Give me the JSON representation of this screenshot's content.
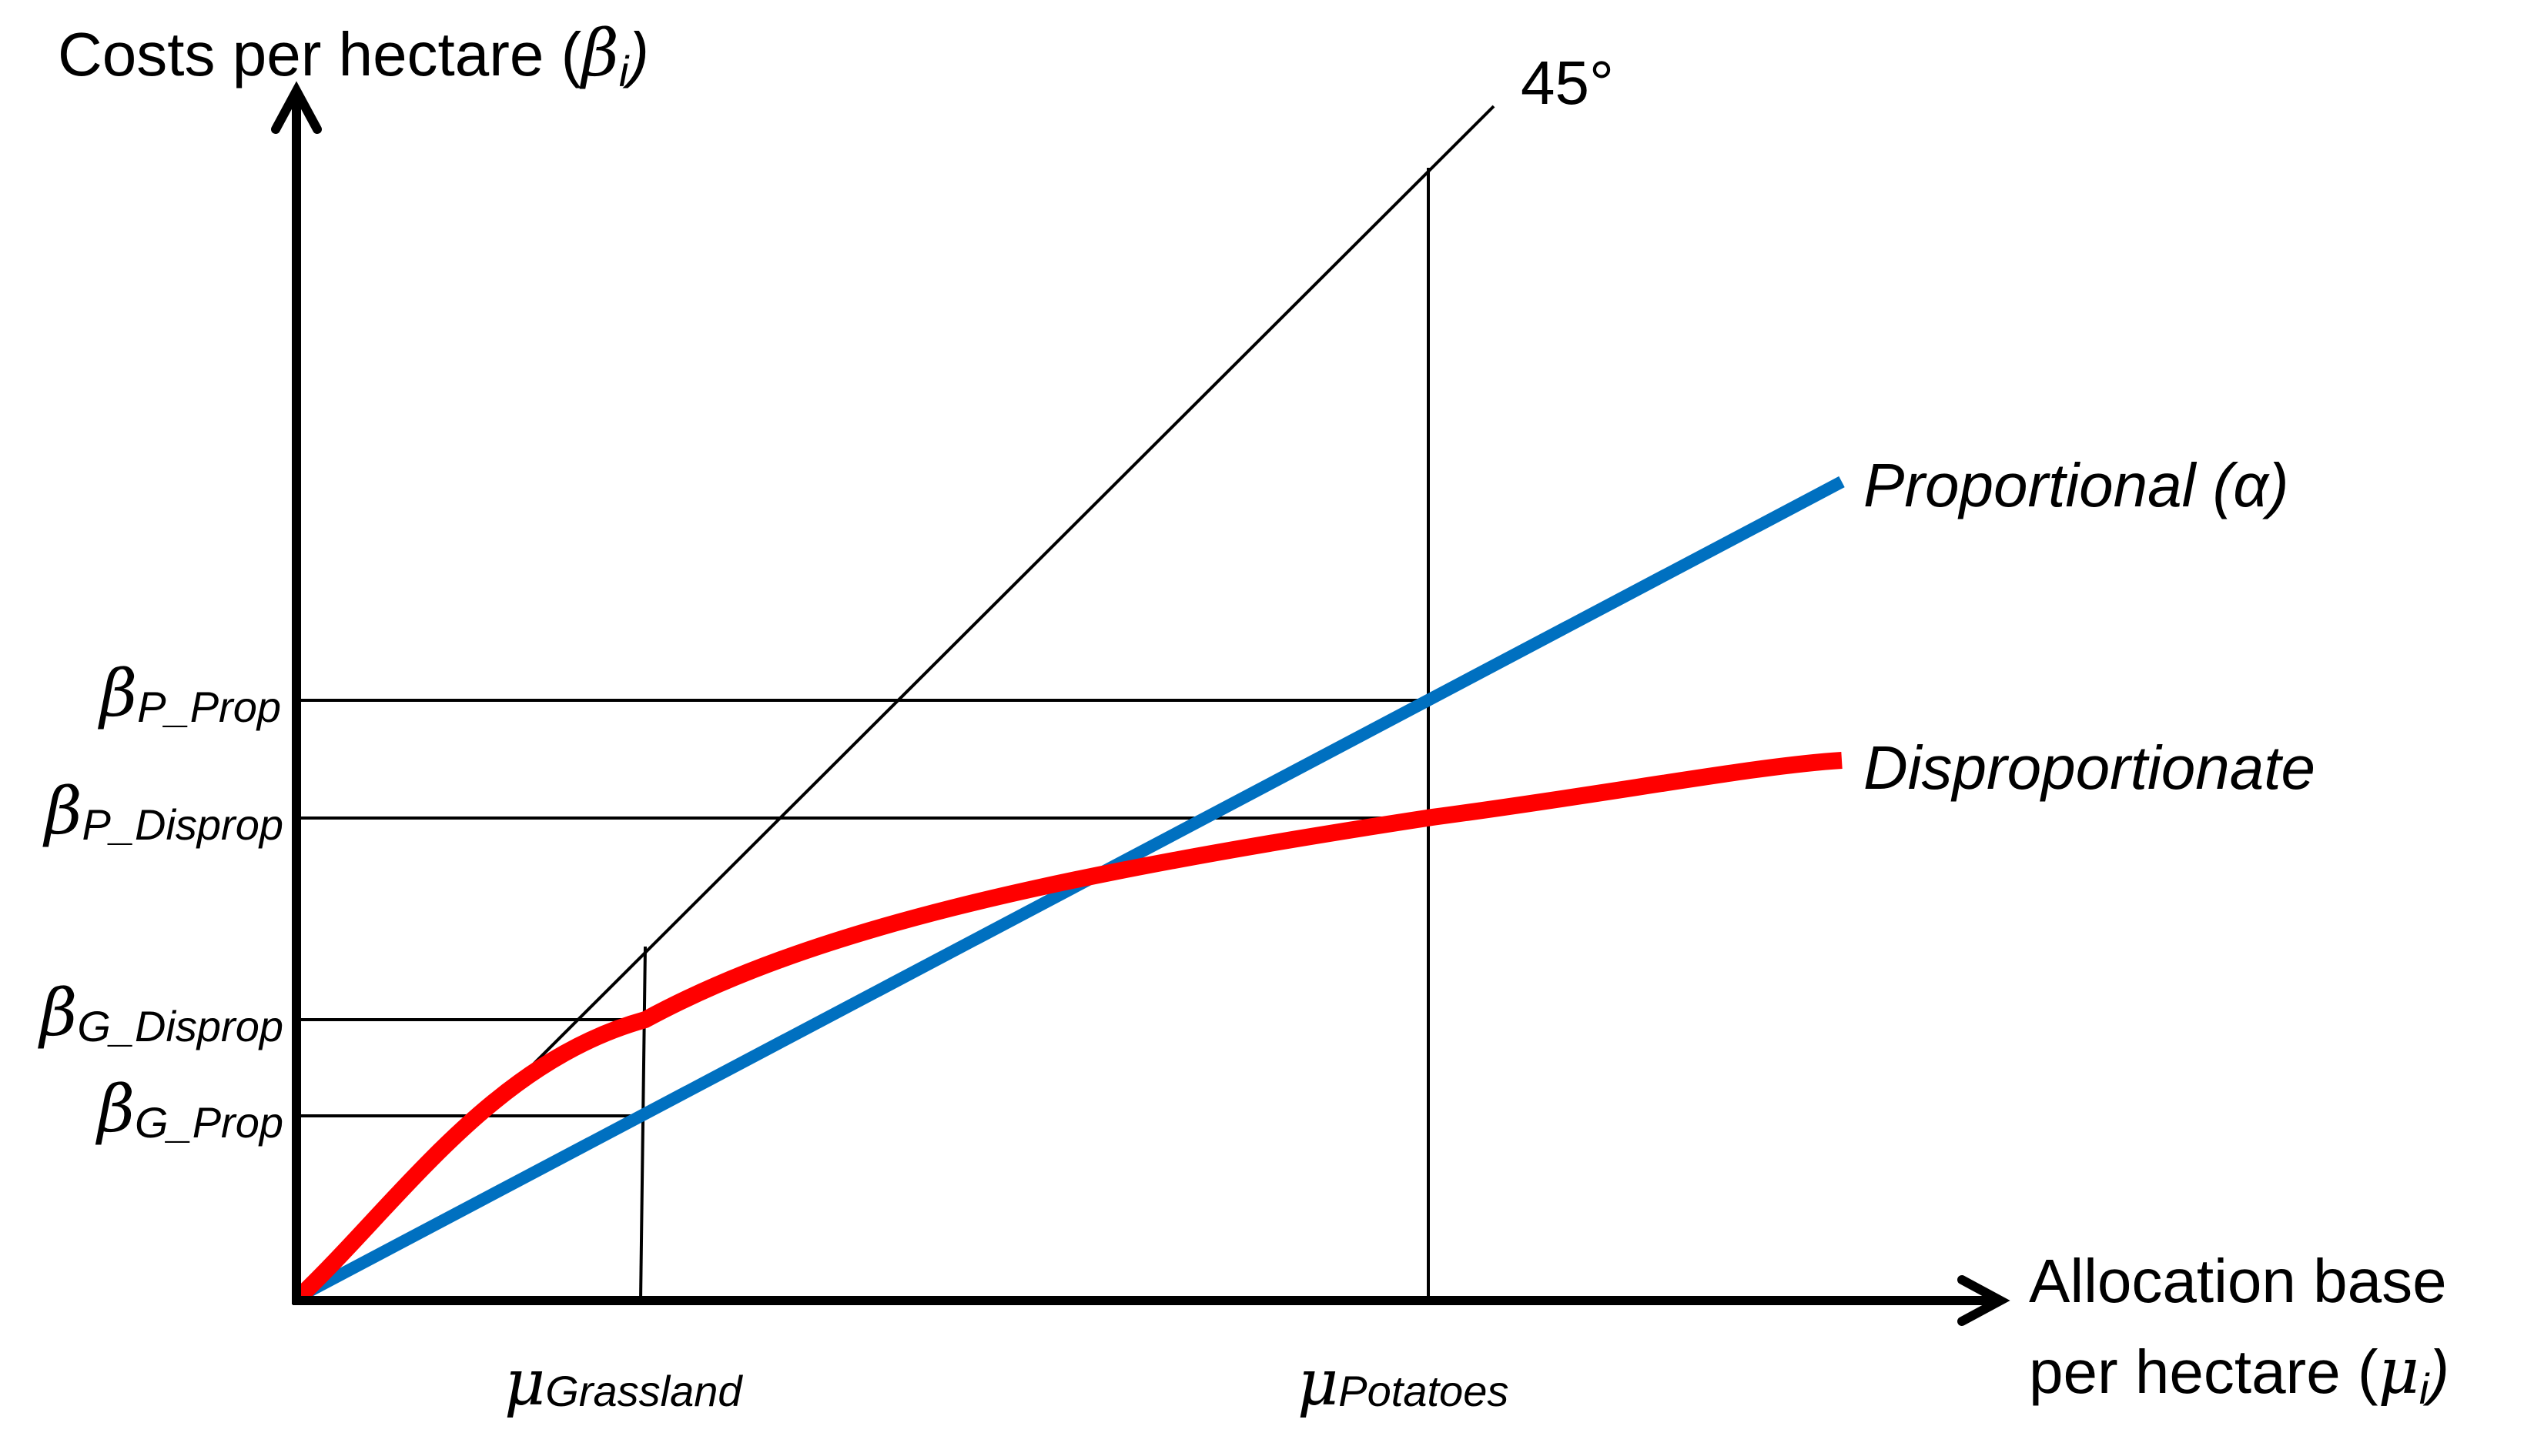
{
  "diagram": {
    "y_axis_label": {
      "text": "Costs per hectare (",
      "symbol": "β",
      "sub": "i",
      "close": ")"
    },
    "x_axis_label": {
      "line1": "Allocation base",
      "line2_text": "per hectare (",
      "line2_symbol": "μ",
      "line2_sub": "i",
      "line2_close": ")"
    },
    "reference_line_label": "45°",
    "curves": [
      {
        "name": "Proportional (α)",
        "color": "#0070c0"
      },
      {
        "name": "Disproportionate",
        "color": "#ff0000"
      }
    ],
    "y_markers": [
      {
        "symbol": "β",
        "sub": "P_Prop"
      },
      {
        "symbol": "β",
        "sub": "P_Disprop"
      },
      {
        "symbol": "β",
        "sub": "G_Disprop"
      },
      {
        "symbol": "β",
        "sub": "G_Prop"
      }
    ],
    "x_markers": [
      {
        "symbol": "μ",
        "sub": "Grassland"
      },
      {
        "symbol": "μ",
        "sub": "Potatoes"
      }
    ]
  }
}
